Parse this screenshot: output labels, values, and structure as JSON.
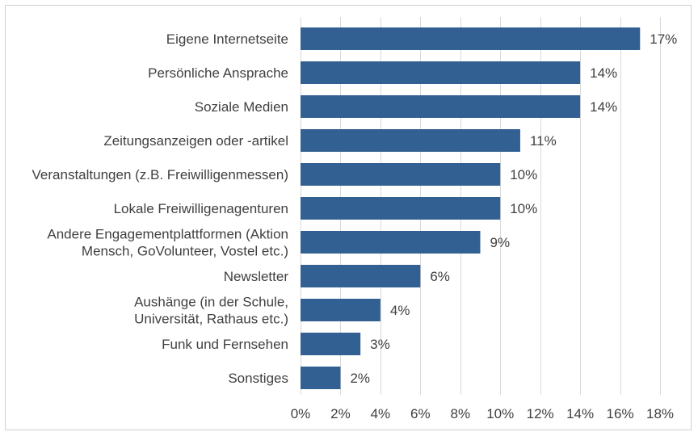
{
  "chart_data": {
    "type": "bar",
    "orientation": "horizontal",
    "categories": [
      [
        "Eigene Internetseite"
      ],
      [
        "Persönliche Ansprache"
      ],
      [
        "Soziale Medien"
      ],
      [
        "Zeitungsanzeigen oder  -artikel"
      ],
      [
        "Veranstaltungen (z.B. Freiwilligenmessen)"
      ],
      [
        "Lokale Freiwilligenagenturen"
      ],
      [
        "Andere Engagementplattformen (Aktion",
        "Mensch, GoVolunteer, Vostel etc.)"
      ],
      [
        "Newsletter"
      ],
      [
        "Aushänge (in der Schule,",
        "Universität, Rathaus etc.)"
      ],
      [
        "Funk und Fernsehen"
      ],
      [
        "Sonstiges"
      ]
    ],
    "values": [
      17,
      14,
      14,
      11,
      10,
      10,
      9,
      6,
      4,
      3,
      2
    ],
    "value_labels": [
      "17%",
      "14%",
      "14%",
      "11%",
      "10%",
      "10%",
      "9%",
      "6%",
      "4%",
      "3%",
      "2%"
    ],
    "xlim": [
      0,
      18
    ],
    "x_ticks": [
      0,
      2,
      4,
      6,
      8,
      10,
      12,
      14,
      16,
      18
    ],
    "x_tick_labels": [
      "0%",
      "2%",
      "4%",
      "6%",
      "8%",
      "10%",
      "12%",
      "14%",
      "16%",
      "18%"
    ],
    "grid": true,
    "bar_color": "#336092",
    "title": "",
    "xlabel": "",
    "ylabel": ""
  }
}
